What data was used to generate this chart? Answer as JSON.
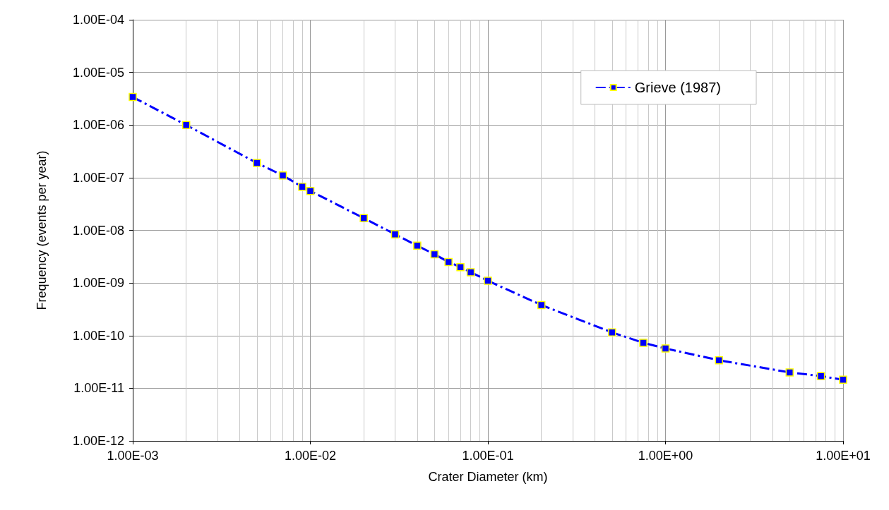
{
  "chart_data": {
    "type": "line",
    "xlabel": "Crater Diameter (km)",
    "ylabel": "Frequency (events per year)",
    "log": "xy",
    "grid": true,
    "legend": "top right",
    "marker": "square",
    "line_style": "dashed",
    "xlim": [
      0.001,
      10
    ],
    "xticks": [
      {
        "value": 0.001,
        "label": "1.00E-03"
      },
      {
        "value": 0.01,
        "label": "1.00E-02"
      },
      {
        "value": 0.1,
        "label": "1.00E-01"
      },
      {
        "value": 1,
        "label": "1.00E+00"
      },
      {
        "value": 10,
        "label": "1.00E+01"
      }
    ],
    "ylim": [
      1e-12,
      0.0001
    ],
    "yticks": [
      {
        "value": 1e-12,
        "label": "1.00E-12"
      },
      {
        "value": 1e-11,
        "label": "1.00E-11"
      },
      {
        "value": 1e-10,
        "label": "1.00E-10"
      },
      {
        "value": 1e-09,
        "label": "1.00E-09"
      },
      {
        "value": 1e-08,
        "label": "1.00E-08"
      },
      {
        "value": 1e-07,
        "label": "1.00E-07"
      },
      {
        "value": 1e-06,
        "label": "1.00E-06"
      },
      {
        "value": 1e-05,
        "label": "1.00E-05"
      },
      {
        "value": 0.0001,
        "label": "1.00E-04"
      }
    ],
    "x": [
      0.001,
      0.002,
      0.005,
      0.007,
      0.009,
      0.01,
      0.02,
      0.03,
      0.04,
      0.05,
      0.06,
      0.07,
      0.08,
      0.1,
      0.2,
      0.5,
      0.75,
      1,
      2,
      5,
      7.5,
      10
    ],
    "series": [
      {
        "name": "Grieve (1987)",
        "color": "#0000ff",
        "values": [
          3.4e-06,
          1e-06,
          1.9e-07,
          1.1e-07,
          6.7e-08,
          5.6e-08,
          1.7e-08,
          8.4e-09,
          5.1e-09,
          3.5e-09,
          2.5e-09,
          2e-09,
          1.6e-09,
          1.1e-09,
          3.8e-10,
          1.15e-10,
          7.3e-11,
          5.7e-11,
          3.4e-11,
          2e-11,
          1.7e-11,
          1.45e-11
        ]
      }
    ]
  }
}
